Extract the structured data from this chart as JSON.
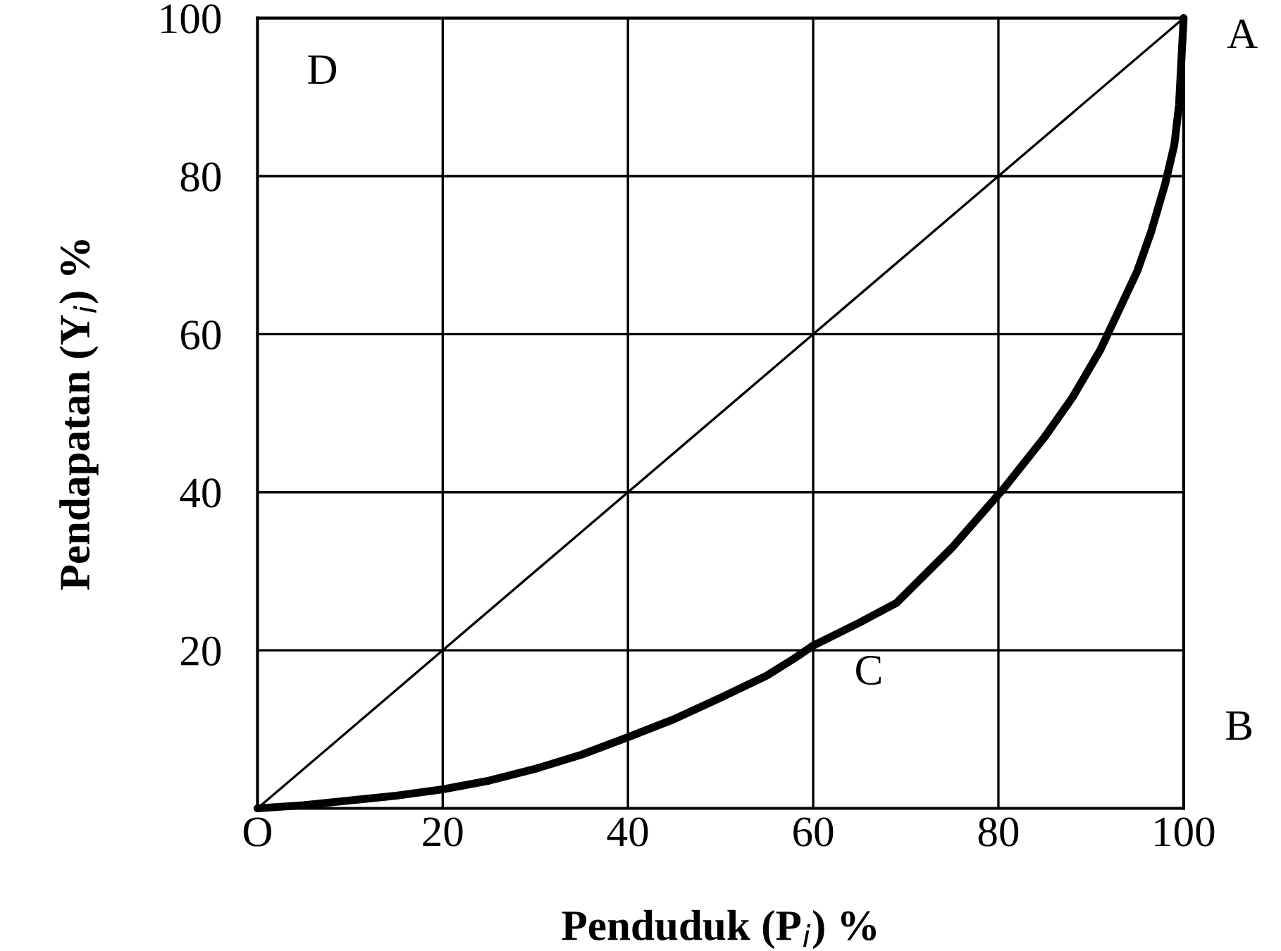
{
  "chart_data": {
    "type": "line",
    "xlabel": "Penduduk (P$_{i}$) %",
    "ylabel": "Pendapatan (Y$_{i}$) %",
    "series": [
      {
        "color": "#000000",
        "x": [
          0,
          100
        ],
        "values": [
          0,
          100
        ]
      },
      {
        "color": "#000000",
        "x": [
          0,
          5,
          10,
          15,
          20,
          25,
          30,
          35,
          40,
          45,
          50,
          55,
          58,
          60,
          65,
          69,
          75,
          80.6,
          85,
          88,
          91,
          93,
          95,
          96.5,
          98,
          99,
          99.5,
          100
        ],
        "values": [
          0,
          0.4,
          1,
          1.6,
          2.4,
          3.5,
          5,
          6.8,
          9,
          11.3,
          14,
          16.8,
          19,
          20.6,
          23.5,
          26,
          33,
          40.5,
          47,
          52,
          58,
          63,
          68,
          73,
          79,
          84,
          89,
          100
        ]
      }
    ],
    "xlim": [
      0,
      100
    ],
    "ylim": [
      0,
      100
    ],
    "xticks": [
      {
        "value": 0,
        "label": "O"
      },
      20,
      40,
      60,
      80,
      100
    ],
    "yticks": [
      20,
      40,
      60,
      80,
      100
    ],
    "grid": true,
    "annotations": [
      {
        "text": "A",
        "x": 100,
        "y": 100
      },
      "B",
      "C",
      "D"
    ]
  }
}
